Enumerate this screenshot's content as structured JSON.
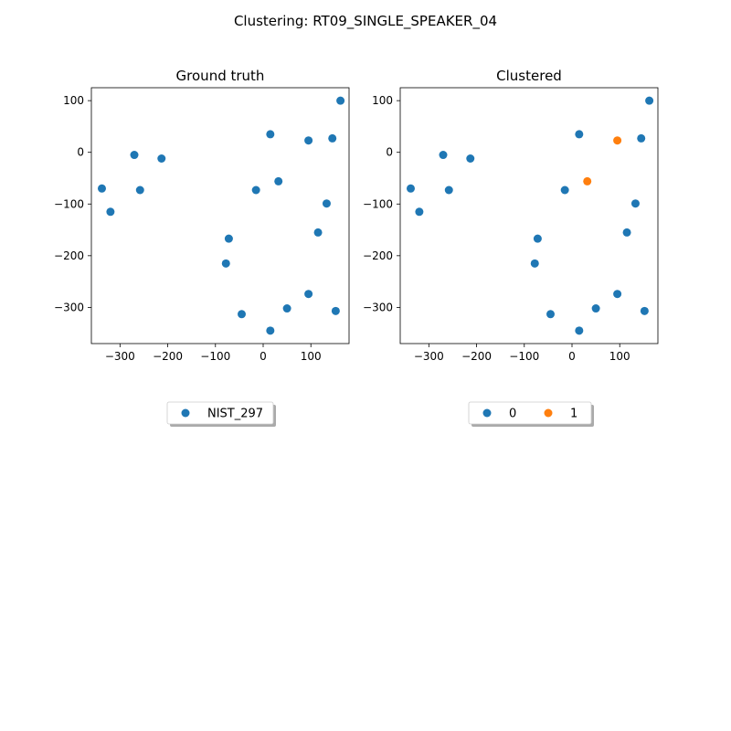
{
  "figure": {
    "suptitle": "Clustering: RT09_SINGLE_SPEAKER_04"
  },
  "chart_data": [
    {
      "type": "scatter",
      "title": "Ground truth",
      "xlim": [
        -360,
        180
      ],
      "ylim": [
        -370,
        125
      ],
      "xticks": [
        -300,
        -200,
        -100,
        0,
        100
      ],
      "xtick_labels": [
        "−300",
        "−200",
        "−100",
        "0",
        "100"
      ],
      "yticks": [
        100,
        0,
        -100,
        -200,
        -300
      ],
      "ytick_labels": [
        "100",
        "0",
        "−100",
        "−200",
        "−300"
      ],
      "grid": false,
      "legend_position": "below",
      "legend_columns": 1,
      "series": [
        {
          "name": "NIST_297",
          "color": "#1f77b4",
          "points": [
            [
              162,
              100
            ],
            [
              15,
              35
            ],
            [
              95,
              23
            ],
            [
              145,
              27
            ],
            [
              -270,
              -5
            ],
            [
              -213,
              -12
            ],
            [
              -338,
              -70
            ],
            [
              -258,
              -73
            ],
            [
              -15,
              -73
            ],
            [
              32,
              -56
            ],
            [
              133,
              -99
            ],
            [
              -320,
              -115
            ],
            [
              115,
              -155
            ],
            [
              -72,
              -167
            ],
            [
              -78,
              -215
            ],
            [
              95,
              -274
            ],
            [
              50,
              -302
            ],
            [
              -45,
              -313
            ],
            [
              152,
              -307
            ],
            [
              15,
              -345
            ]
          ]
        }
      ]
    },
    {
      "type": "scatter",
      "title": "Clustered",
      "xlim": [
        -360,
        180
      ],
      "ylim": [
        -370,
        125
      ],
      "xticks": [
        -300,
        -200,
        -100,
        0,
        100
      ],
      "xtick_labels": [
        "−300",
        "−200",
        "−100",
        "0",
        "100"
      ],
      "yticks": [
        100,
        0,
        -100,
        -200,
        -300
      ],
      "ytick_labels": [
        "100",
        "0",
        "−100",
        "−200",
        "−300"
      ],
      "grid": false,
      "legend_position": "below",
      "legend_columns": 2,
      "series": [
        {
          "name": "0",
          "color": "#1f77b4",
          "points": [
            [
              162,
              100
            ],
            [
              15,
              35
            ],
            [
              145,
              27
            ],
            [
              -270,
              -5
            ],
            [
              -213,
              -12
            ],
            [
              -338,
              -70
            ],
            [
              -258,
              -73
            ],
            [
              -15,
              -73
            ],
            [
              133,
              -99
            ],
            [
              -320,
              -115
            ],
            [
              115,
              -155
            ],
            [
              -72,
              -167
            ],
            [
              -78,
              -215
            ],
            [
              95,
              -274
            ],
            [
              50,
              -302
            ],
            [
              -45,
              -313
            ],
            [
              152,
              -307
            ],
            [
              15,
              -345
            ]
          ]
        },
        {
          "name": "1",
          "color": "#ff7f0e",
          "points": [
            [
              95,
              23
            ],
            [
              32,
              -56
            ]
          ]
        }
      ]
    }
  ]
}
